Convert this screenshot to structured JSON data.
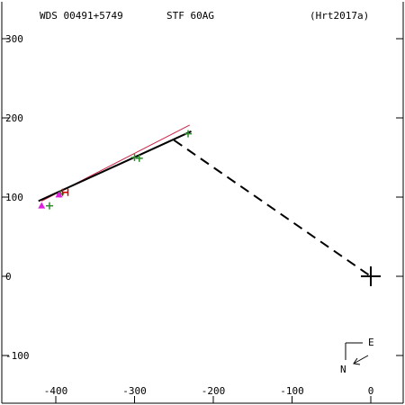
{
  "header": {
    "wds_id": "WDS 00491+5749",
    "discoverer": "STF  60AG",
    "reference": "(Hrt2017a)"
  },
  "compass": {
    "east_label": "E",
    "north_label": "N"
  },
  "colors": {
    "axis": "#000000",
    "orbit_fit": "#000000",
    "ref_line": "#cc2244",
    "micrometer": "#2e8b2e",
    "speckle": "#e020e0",
    "hipparcos": "#cc0000"
  },
  "chart_data": {
    "type": "scatter",
    "x_ticks": [
      -400,
      -300,
      -200,
      -100,
      0
    ],
    "y_ticks": [
      -100,
      0,
      100,
      200,
      300
    ],
    "xlim": [
      -460,
      40
    ],
    "ylim": [
      -165,
      345
    ],
    "primary": {
      "x": 0,
      "y": 0
    },
    "fit_line": [
      [
        -422,
        95
      ],
      [
        -228,
        183
      ]
    ],
    "ref_line": [
      [
        -418,
        95
      ],
      [
        -230,
        191
      ]
    ],
    "connector": [
      [
        -250,
        172
      ],
      [
        0,
        0
      ]
    ],
    "micrometer_points": [
      [
        -232,
        180
      ],
      [
        -300,
        150
      ],
      [
        -294,
        149
      ],
      [
        -408,
        89
      ],
      [
        -394,
        104
      ]
    ],
    "speckle_points": [
      [
        -418,
        89
      ],
      [
        -396,
        103
      ]
    ],
    "hipparcos_points": [
      [
        -388,
        106
      ]
    ],
    "grid": false
  }
}
